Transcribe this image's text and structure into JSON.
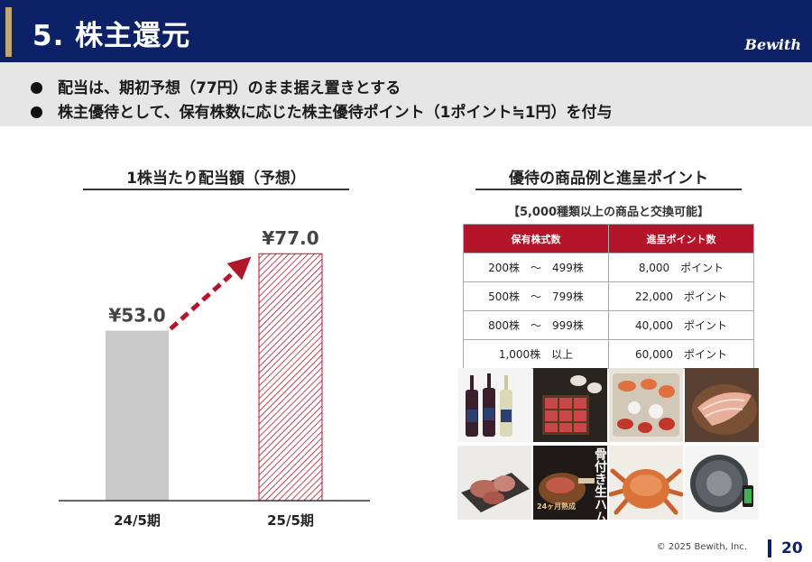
{
  "header": {
    "title": "5. 株主還元",
    "logo": "Bewith"
  },
  "bullets": [
    "配当は、期初予想（77円）のまま据え置きとする",
    "株主優待として、保有株数に応じた株主優待ポイント（1ポイント≒1円）を付与"
  ],
  "left_section": {
    "title": "1株当たり配当額（予想）"
  },
  "chart_data": {
    "type": "bar",
    "title": "1株当たり配当額（予想）",
    "categories": [
      "24/5期",
      "25/5期"
    ],
    "values": [
      53.0,
      77.0
    ],
    "data_labels": [
      "¥53.0",
      "¥77.0"
    ],
    "ylim": [
      0,
      90
    ],
    "colors": {
      "bar1": "#c9c9c9",
      "bar2_stripe": "#b3162b",
      "arrow": "#b3162b",
      "axis": "#333333"
    },
    "grid": false
  },
  "right_section": {
    "title": "優待の商品例と進呈ポイント",
    "note": "【5,000種類以上の商品と交換可能】",
    "table": {
      "headers": [
        "保有株式数",
        "進呈ポイント数"
      ],
      "rows": [
        [
          "200株　～　499株",
          "8,000　ポイント"
        ],
        [
          "500株　～　799株",
          "22,000　ポイント"
        ],
        [
          "800株　～　999株",
          "40,000　ポイント"
        ],
        [
          "1,000株　以上",
          "60,000　ポイント"
        ]
      ]
    },
    "photos": [
      {
        "name": "wine-photo"
      },
      {
        "name": "wagyu-box-photo"
      },
      {
        "name": "seafood-platter-photo"
      },
      {
        "name": "fish-fillet-photo"
      },
      {
        "name": "roast-beef-photo"
      },
      {
        "name": "bone-in-ham-photo",
        "caption": "骨付き生ハム",
        "subcaption": "24ヶ月熟成"
      },
      {
        "name": "hairy-crab-photo"
      },
      {
        "name": "robot-vacuum-photo"
      }
    ]
  },
  "footer": {
    "copyright": "© 2025 Bewith, Inc.",
    "page": "20"
  }
}
